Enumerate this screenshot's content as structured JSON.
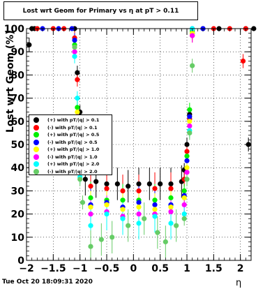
{
  "chart_data": {
    "type": "scatter",
    "title": "Lost wrt Geom for Primary vs  η at pT > 0.11",
    "xlabel": "η",
    "ylabel": "Lost wrt Geom (%)",
    "xlim": [
      -2.0,
      2.2
    ],
    "ylim": [
      0,
      100
    ],
    "x_ticks": [
      "-2",
      "-1.5",
      "-1",
      "-0.5",
      "0",
      "0.5",
      "1",
      "1.5",
      "2"
    ],
    "y_ticks": [
      "0",
      "10",
      "20",
      "30",
      "40",
      "50",
      "60",
      "70",
      "80",
      "90",
      "100"
    ],
    "grid": true,
    "legend_position": "center-left",
    "series": [
      {
        "name": "(+) with pT/|q| > 0.1",
        "color": "#000000",
        "x": [
          -1.95,
          -1.9,
          -1.85,
          -1.1,
          -1.05,
          -1.0,
          -0.9,
          -0.7,
          -0.5,
          -0.3,
          -0.1,
          0.1,
          0.3,
          0.5,
          0.7,
          0.9,
          0.95,
          1.0,
          1.05,
          1.1,
          1.3,
          1.6,
          2.1,
          2.15,
          2.25
        ],
        "y": [
          93,
          100,
          100,
          100,
          81,
          64,
          35,
          34,
          33,
          33,
          32,
          33,
          33,
          33,
          33,
          34,
          39,
          50,
          63,
          98,
          100,
          100,
          100,
          50,
          100
        ]
      },
      {
        "name": "(-) with pT/|q| > 0.1",
        "color": "#ff0000",
        "x": [
          -1.8,
          -1.5,
          -1.3,
          -1.1,
          -1.05,
          -1.0,
          -0.8,
          -0.5,
          -0.2,
          0.1,
          0.4,
          0.7,
          0.95,
          1.0,
          1.05,
          1.1,
          1.5,
          1.8,
          2.05,
          2.1
        ],
        "y": [
          100,
          100,
          100,
          96,
          78,
          60,
          32,
          31,
          30,
          30,
          31,
          31,
          35,
          47,
          61,
          97,
          100,
          100,
          86,
          100
        ]
      },
      {
        "name": "(+) with pT/|q| > 0.5",
        "color": "#00ee00",
        "x": [
          -1.1,
          -1.05,
          -1.0,
          -0.8,
          -0.5,
          -0.2,
          0.1,
          0.4,
          0.7,
          0.95,
          1.0,
          1.05,
          1.1
        ],
        "y": [
          93,
          66,
          50,
          27,
          26,
          26,
          26,
          26,
          27,
          30,
          45,
          65,
          99
        ]
      },
      {
        "name": "(-) with pT/|q| > 0.5",
        "color": "#0000ff",
        "x": [
          -1.7,
          -1.4,
          -1.15,
          -1.1,
          -1.05,
          -1.0,
          -0.8,
          -0.5,
          -0.2,
          0.1,
          0.4,
          0.7,
          0.95,
          1.0,
          1.05,
          1.1,
          1.3
        ],
        "y": [
          100,
          100,
          100,
          95,
          62,
          45,
          24,
          25,
          23,
          25,
          24,
          24,
          28,
          43,
          62,
          100,
          100
        ]
      },
      {
        "name": "(+) with pT/|q| > 1.0",
        "color": "#ffff00",
        "x": [
          -1.1,
          -1.05,
          -1.0,
          -0.8,
          -0.5,
          -0.2,
          0.1,
          0.4,
          0.7,
          0.95,
          1.0,
          1.05,
          1.1
        ],
        "y": [
          92,
          64,
          45,
          23,
          24,
          22,
          23,
          22,
          23,
          27,
          40,
          60,
          98
        ]
      },
      {
        "name": "(-) with pT/|q| > 1.0",
        "color": "#ff00ff",
        "x": [
          -1.1,
          -1.05,
          -1.0,
          -0.8,
          -0.5,
          -0.2,
          0.1,
          0.4,
          0.7,
          0.95,
          1.0,
          1.05,
          1.1
        ],
        "y": [
          90,
          62,
          40,
          20,
          21,
          19,
          20,
          20,
          21,
          24,
          38,
          58,
          97
        ]
      },
      {
        "name": "(+) with pT/|q| > 2.0",
        "color": "#00ffff",
        "x": [
          -1.1,
          -1.05,
          -1.0,
          -0.8,
          -0.5,
          -0.2,
          0.1,
          0.4,
          0.7,
          0.95,
          1.0,
          1.05,
          1.1
        ],
        "y": [
          88,
          70,
          36,
          15,
          20,
          18,
          16,
          19,
          16,
          20,
          35,
          56,
          100
        ]
      },
      {
        "name": "(-) with pT/|q| > 2.0",
        "color": "#66cc66",
        "x": [
          -1.1,
          -1.05,
          -1.0,
          -0.95,
          -0.8,
          -0.6,
          -0.4,
          -0.1,
          0.2,
          0.45,
          0.6,
          0.8,
          0.95,
          1.0,
          1.05,
          1.1
        ],
        "y": [
          92,
          55,
          35,
          25,
          6,
          9,
          10,
          15,
          18,
          12,
          8,
          15,
          18,
          35,
          55,
          84
        ]
      }
    ]
  },
  "footer": "Tue Oct 20 18:09:31 2020"
}
